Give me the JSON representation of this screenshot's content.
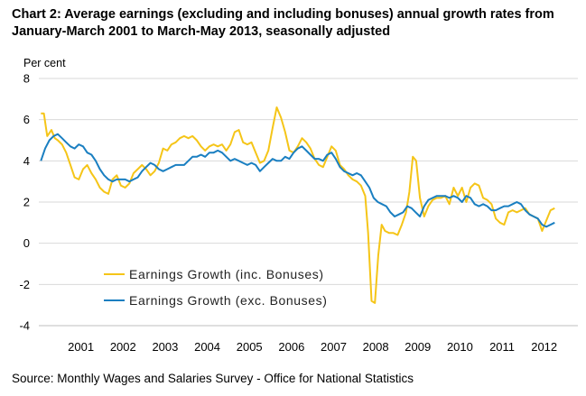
{
  "title": "Chart 2: Average earnings (excluding and including bonuses) annual growth rates from January-March 2001 to March-May 2013, seasonally adjusted",
  "source": "Source: Monthly Wages and Salaries Survey - Office for National Statistics",
  "chart_data": {
    "type": "line",
    "title": "Chart 2: Average earnings (excluding and including bonuses) annual growth rates from January-March 2001 to March-May 2013, seasonally adjusted",
    "xlabel": "",
    "ylabel": "Per cent",
    "xlim": [
      2000.5,
      2013.3
    ],
    "ylim": [
      -4,
      8
    ],
    "y_ticks": [
      "8",
      "6",
      "4",
      "2",
      "0",
      "-2",
      "-4"
    ],
    "x_tick_labels": [
      "2001",
      "2002",
      "2003",
      "2004",
      "2005",
      "2006",
      "2007",
      "2008",
      "2009",
      "2010",
      "2011",
      "2012"
    ],
    "grid": "horizontal",
    "legend_position": "lower-left",
    "series": [
      {
        "name": "Earnings Growth (inc. Bonuses)",
        "color": "#f5c518",
        "points": [
          [
            2000.55,
            6.3
          ],
          [
            2000.62,
            6.3
          ],
          [
            2000.7,
            5.2
          ],
          [
            2000.8,
            5.5
          ],
          [
            2000.88,
            5.1
          ],
          [
            2000.95,
            5.0
          ],
          [
            2001.05,
            4.8
          ],
          [
            2001.15,
            4.4
          ],
          [
            2001.25,
            3.8
          ],
          [
            2001.35,
            3.2
          ],
          [
            2001.45,
            3.1
          ],
          [
            2001.55,
            3.6
          ],
          [
            2001.65,
            3.8
          ],
          [
            2001.75,
            3.4
          ],
          [
            2001.85,
            3.1
          ],
          [
            2001.95,
            2.7
          ],
          [
            2002.05,
            2.5
          ],
          [
            2002.15,
            2.4
          ],
          [
            2002.25,
            3.1
          ],
          [
            2002.35,
            3.3
          ],
          [
            2002.45,
            2.8
          ],
          [
            2002.55,
            2.7
          ],
          [
            2002.65,
            2.9
          ],
          [
            2002.75,
            3.4
          ],
          [
            2002.85,
            3.6
          ],
          [
            2002.95,
            3.8
          ],
          [
            2003.05,
            3.6
          ],
          [
            2003.15,
            3.3
          ],
          [
            2003.25,
            3.5
          ],
          [
            2003.35,
            3.9
          ],
          [
            2003.45,
            4.6
          ],
          [
            2003.55,
            4.5
          ],
          [
            2003.65,
            4.8
          ],
          [
            2003.75,
            4.9
          ],
          [
            2003.85,
            5.1
          ],
          [
            2003.95,
            5.2
          ],
          [
            2004.05,
            5.1
          ],
          [
            2004.15,
            5.2
          ],
          [
            2004.25,
            5.0
          ],
          [
            2004.35,
            4.7
          ],
          [
            2004.45,
            4.5
          ],
          [
            2004.55,
            4.7
          ],
          [
            2004.65,
            4.8
          ],
          [
            2004.75,
            4.7
          ],
          [
            2004.85,
            4.8
          ],
          [
            2004.95,
            4.5
          ],
          [
            2005.05,
            4.8
          ],
          [
            2005.15,
            5.4
          ],
          [
            2005.25,
            5.5
          ],
          [
            2005.35,
            4.9
          ],
          [
            2005.45,
            4.8
          ],
          [
            2005.55,
            4.9
          ],
          [
            2005.65,
            4.4
          ],
          [
            2005.75,
            3.9
          ],
          [
            2005.85,
            4.0
          ],
          [
            2005.95,
            4.5
          ],
          [
            2006.05,
            5.6
          ],
          [
            2006.15,
            6.6
          ],
          [
            2006.25,
            6.1
          ],
          [
            2006.35,
            5.4
          ],
          [
            2006.45,
            4.5
          ],
          [
            2006.55,
            4.4
          ],
          [
            2006.65,
            4.7
          ],
          [
            2006.75,
            5.1
          ],
          [
            2006.85,
            4.9
          ],
          [
            2006.95,
            4.6
          ],
          [
            2007.05,
            4.1
          ],
          [
            2007.15,
            3.8
          ],
          [
            2007.25,
            3.7
          ],
          [
            2007.35,
            4.2
          ],
          [
            2007.45,
            4.7
          ],
          [
            2007.55,
            4.5
          ],
          [
            2007.65,
            3.8
          ],
          [
            2007.75,
            3.6
          ],
          [
            2007.85,
            3.3
          ],
          [
            2007.95,
            3.1
          ],
          [
            2008.05,
            3.0
          ],
          [
            2008.15,
            2.8
          ],
          [
            2008.25,
            2.3
          ],
          [
            2008.32,
            0.5
          ],
          [
            2008.4,
            -2.8
          ],
          [
            2008.48,
            -2.9
          ],
          [
            2008.56,
            -0.6
          ],
          [
            2008.64,
            0.9
          ],
          [
            2008.72,
            0.6
          ],
          [
            2008.82,
            0.5
          ],
          [
            2008.92,
            0.5
          ],
          [
            2009.02,
            0.4
          ],
          [
            2009.12,
            0.9
          ],
          [
            2009.22,
            1.5
          ],
          [
            2009.3,
            2.5
          ],
          [
            2009.38,
            4.2
          ],
          [
            2009.46,
            4.0
          ],
          [
            2009.55,
            2.2
          ],
          [
            2009.65,
            1.3
          ],
          [
            2009.75,
            1.8
          ],
          [
            2009.85,
            2.1
          ],
          [
            2009.95,
            2.2
          ],
          [
            2010.05,
            2.2
          ],
          [
            2010.15,
            2.3
          ],
          [
            2010.25,
            1.9
          ],
          [
            2010.35,
            2.7
          ],
          [
            2010.45,
            2.3
          ],
          [
            2010.55,
            2.7
          ],
          [
            2010.65,
            2.0
          ],
          [
            2010.75,
            2.7
          ],
          [
            2010.85,
            2.9
          ],
          [
            2010.95,
            2.8
          ],
          [
            2011.05,
            2.2
          ],
          [
            2011.15,
            2.1
          ],
          [
            2011.25,
            1.9
          ],
          [
            2011.35,
            1.2
          ],
          [
            2011.45,
            1.0
          ],
          [
            2011.55,
            0.9
          ],
          [
            2011.65,
            1.5
          ],
          [
            2011.75,
            1.6
          ],
          [
            2011.85,
            1.5
          ],
          [
            2011.95,
            1.6
          ],
          [
            2012.05,
            1.7
          ],
          [
            2012.15,
            1.4
          ],
          [
            2012.25,
            1.3
          ],
          [
            2012.35,
            1.2
          ],
          [
            2012.45,
            0.6
          ],
          [
            2012.55,
            1.1
          ],
          [
            2012.65,
            1.6
          ],
          [
            2012.75,
            1.7
          ]
        ]
      },
      {
        "name": "Earnings Growth (exc. Bonuses)",
        "color": "#1a7fc1",
        "points": [
          [
            2000.55,
            4.0
          ],
          [
            2000.65,
            4.6
          ],
          [
            2000.75,
            5.0
          ],
          [
            2000.85,
            5.2
          ],
          [
            2000.95,
            5.3
          ],
          [
            2001.05,
            5.1
          ],
          [
            2001.15,
            4.9
          ],
          [
            2001.25,
            4.7
          ],
          [
            2001.35,
            4.6
          ],
          [
            2001.45,
            4.8
          ],
          [
            2001.55,
            4.7
          ],
          [
            2001.65,
            4.4
          ],
          [
            2001.75,
            4.3
          ],
          [
            2001.85,
            4.0
          ],
          [
            2001.95,
            3.6
          ],
          [
            2002.05,
            3.3
          ],
          [
            2002.15,
            3.1
          ],
          [
            2002.25,
            3.0
          ],
          [
            2002.35,
            3.1
          ],
          [
            2002.45,
            3.1
          ],
          [
            2002.55,
            3.1
          ],
          [
            2002.65,
            3.0
          ],
          [
            2002.75,
            3.1
          ],
          [
            2002.85,
            3.2
          ],
          [
            2002.95,
            3.5
          ],
          [
            2003.05,
            3.7
          ],
          [
            2003.15,
            3.9
          ],
          [
            2003.25,
            3.8
          ],
          [
            2003.35,
            3.6
          ],
          [
            2003.45,
            3.5
          ],
          [
            2003.55,
            3.6
          ],
          [
            2003.65,
            3.7
          ],
          [
            2003.75,
            3.8
          ],
          [
            2003.85,
            3.8
          ],
          [
            2003.95,
            3.8
          ],
          [
            2004.05,
            4.0
          ],
          [
            2004.15,
            4.2
          ],
          [
            2004.25,
            4.2
          ],
          [
            2004.35,
            4.3
          ],
          [
            2004.45,
            4.2
          ],
          [
            2004.55,
            4.4
          ],
          [
            2004.65,
            4.4
          ],
          [
            2004.75,
            4.5
          ],
          [
            2004.85,
            4.4
          ],
          [
            2004.95,
            4.2
          ],
          [
            2005.05,
            4.0
          ],
          [
            2005.15,
            4.1
          ],
          [
            2005.25,
            4.0
          ],
          [
            2005.35,
            3.9
          ],
          [
            2005.45,
            3.8
          ],
          [
            2005.55,
            3.9
          ],
          [
            2005.65,
            3.8
          ],
          [
            2005.75,
            3.5
          ],
          [
            2005.85,
            3.7
          ],
          [
            2005.95,
            3.9
          ],
          [
            2006.05,
            4.1
          ],
          [
            2006.15,
            4.0
          ],
          [
            2006.25,
            4.0
          ],
          [
            2006.35,
            4.2
          ],
          [
            2006.45,
            4.1
          ],
          [
            2006.55,
            4.4
          ],
          [
            2006.65,
            4.6
          ],
          [
            2006.75,
            4.7
          ],
          [
            2006.85,
            4.5
          ],
          [
            2006.95,
            4.3
          ],
          [
            2007.05,
            4.1
          ],
          [
            2007.15,
            4.1
          ],
          [
            2007.25,
            4.0
          ],
          [
            2007.35,
            4.3
          ],
          [
            2007.45,
            4.4
          ],
          [
            2007.55,
            4.1
          ],
          [
            2007.65,
            3.7
          ],
          [
            2007.75,
            3.5
          ],
          [
            2007.85,
            3.4
          ],
          [
            2007.95,
            3.3
          ],
          [
            2008.05,
            3.4
          ],
          [
            2008.15,
            3.3
          ],
          [
            2008.25,
            3.0
          ],
          [
            2008.35,
            2.7
          ],
          [
            2008.45,
            2.2
          ],
          [
            2008.55,
            2.0
          ],
          [
            2008.65,
            1.9
          ],
          [
            2008.75,
            1.8
          ],
          [
            2008.85,
            1.5
          ],
          [
            2008.95,
            1.3
          ],
          [
            2009.05,
            1.4
          ],
          [
            2009.15,
            1.5
          ],
          [
            2009.25,
            1.8
          ],
          [
            2009.35,
            1.7
          ],
          [
            2009.45,
            1.5
          ],
          [
            2009.55,
            1.3
          ],
          [
            2009.65,
            1.8
          ],
          [
            2009.75,
            2.1
          ],
          [
            2009.85,
            2.2
          ],
          [
            2009.95,
            2.3
          ],
          [
            2010.05,
            2.3
          ],
          [
            2010.15,
            2.3
          ],
          [
            2010.25,
            2.2
          ],
          [
            2010.35,
            2.3
          ],
          [
            2010.45,
            2.2
          ],
          [
            2010.55,
            2.0
          ],
          [
            2010.65,
            2.3
          ],
          [
            2010.75,
            2.2
          ],
          [
            2010.85,
            1.9
          ],
          [
            2010.95,
            1.8
          ],
          [
            2011.05,
            1.9
          ],
          [
            2011.15,
            1.8
          ],
          [
            2011.25,
            1.6
          ],
          [
            2011.35,
            1.6
          ],
          [
            2011.45,
            1.7
          ],
          [
            2011.55,
            1.8
          ],
          [
            2011.65,
            1.8
          ],
          [
            2011.75,
            1.9
          ],
          [
            2011.85,
            2.0
          ],
          [
            2011.95,
            1.9
          ],
          [
            2012.05,
            1.6
          ],
          [
            2012.15,
            1.4
          ],
          [
            2012.25,
            1.3
          ],
          [
            2012.35,
            1.2
          ],
          [
            2012.45,
            0.9
          ],
          [
            2012.55,
            0.8
          ],
          [
            2012.65,
            0.9
          ],
          [
            2012.75,
            1.0
          ]
        ]
      }
    ]
  }
}
